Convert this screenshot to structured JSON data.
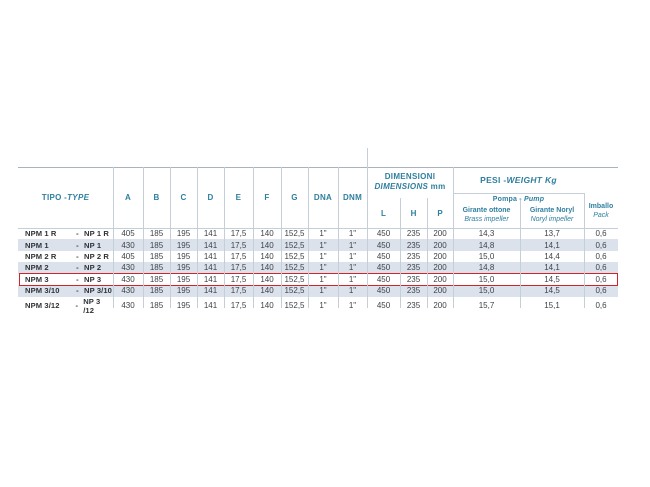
{
  "colors": {
    "header_teal": "#2f7fa0",
    "data_text": "#3f4347",
    "row_shade": "#dbe2ec",
    "grid_line": "#c6cfd8",
    "top_border": "#aab3bb",
    "highlight_red": "#d2232a"
  },
  "table": {
    "type_header": {
      "main": "TIPO - ",
      "italic": "TYPE"
    },
    "letter_columns": [
      "A",
      "B",
      "C",
      "D",
      "E",
      "F",
      "G",
      "DNA",
      "DNM"
    ],
    "dimensions_group": {
      "line1": "DIMENSIONI",
      "line2_italic": "DIMENSIONS",
      "line2_suffix": " mm",
      "sub_columns": [
        "L",
        "H",
        "P"
      ]
    },
    "weight_group": {
      "title_main": "PESI - ",
      "title_italic": "WEIGHT Kg",
      "sub_title_main": "Pompa - ",
      "sub_title_italic": "Pump",
      "col1": {
        "line1": "Girante ottone",
        "line2": "Brass impeller"
      },
      "col2": {
        "line1": "Girante Noryl",
        "line2": "Noryl impeller"
      }
    },
    "pack_column": {
      "line1": "Imballo",
      "line2": "Pack"
    },
    "rows": [
      {
        "type_left": "NPM 1 R",
        "dash": "-",
        "type_right": "NP 1 R",
        "shaded": false,
        "highlighted": false,
        "values": [
          "405",
          "185",
          "195",
          "141",
          "17,5",
          "140",
          "152,5",
          "1\"",
          "1\"",
          "450",
          "235",
          "200",
          "14,3",
          "13,7",
          "0,6"
        ]
      },
      {
        "type_left": "NPM 1",
        "dash": "-",
        "type_right": "NP 1",
        "shaded": true,
        "highlighted": false,
        "values": [
          "430",
          "185",
          "195",
          "141",
          "17,5",
          "140",
          "152,5",
          "1\"",
          "1\"",
          "450",
          "235",
          "200",
          "14,8",
          "14,1",
          "0,6"
        ]
      },
      {
        "type_left": "NPM 2 R",
        "dash": "-",
        "type_right": "NP 2 R",
        "shaded": false,
        "highlighted": false,
        "values": [
          "405",
          "185",
          "195",
          "141",
          "17,5",
          "140",
          "152,5",
          "1\"",
          "1\"",
          "450",
          "235",
          "200",
          "15,0",
          "14,4",
          "0,6"
        ]
      },
      {
        "type_left": "NPM 2",
        "dash": "-",
        "type_right": "NP 2",
        "shaded": true,
        "highlighted": false,
        "values": [
          "430",
          "185",
          "195",
          "141",
          "17,5",
          "140",
          "152,5",
          "1\"",
          "1\"",
          "450",
          "235",
          "200",
          "14,8",
          "14,1",
          "0,6"
        ]
      },
      {
        "type_left": "NPM 3",
        "dash": "-",
        "type_right": "NP 3",
        "shaded": false,
        "highlighted": true,
        "values": [
          "430",
          "185",
          "195",
          "141",
          "17,5",
          "140",
          "152,5",
          "1\"",
          "1\"",
          "450",
          "235",
          "200",
          "15,0",
          "14,5",
          "0,6"
        ]
      },
      {
        "type_left": "NPM 3/10",
        "dash": "-",
        "type_right": "NP 3/10",
        "shaded": true,
        "highlighted": false,
        "values": [
          "430",
          "185",
          "195",
          "141",
          "17,5",
          "140",
          "152,5",
          "1\"",
          "1\"",
          "450",
          "235",
          "200",
          "15,0",
          "14,5",
          "0,6"
        ]
      },
      {
        "type_left": "NPM 3/12",
        "dash": "-",
        "type_right": "NP 3 /12",
        "shaded": false,
        "highlighted": false,
        "values": [
          "430",
          "185",
          "195",
          "141",
          "17,5",
          "140",
          "152,5",
          "1\"",
          "1\"",
          "450",
          "235",
          "200",
          "15,7",
          "15,1",
          "0,6"
        ]
      }
    ]
  }
}
